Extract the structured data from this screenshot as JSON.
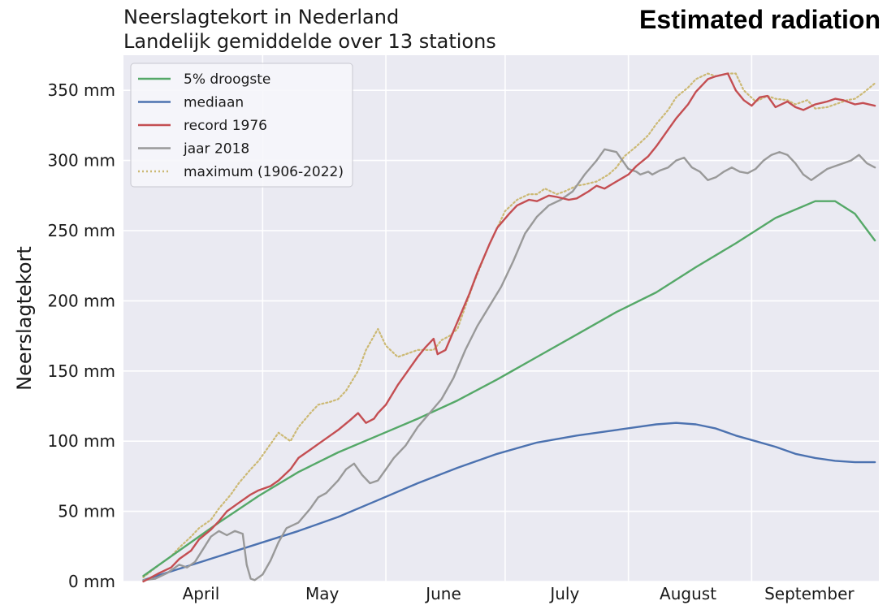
{
  "title_line1": "Neerslagtekort in Nederland",
  "title_line2": "Landelijk gemiddelde over 13 stations",
  "banner": "Estimated radiation",
  "chart_data": {
    "type": "line",
    "title": "Neerslagtekort in Nederland",
    "subtitle": "Landelijk gemiddelde over 13 stations",
    "xlabel": "",
    "ylabel": "Neerslagtekort",
    "x_unit": "day of year",
    "xlim": [
      86,
      276
    ],
    "ylim": [
      0,
      375
    ],
    "yticks": [
      0,
      50,
      100,
      150,
      200,
      250,
      300,
      350
    ],
    "ytick_labels": [
      "0 mm",
      "50 mm",
      "100 mm",
      "150 mm",
      "200 mm",
      "250 mm",
      "300 mm",
      "350 mm"
    ],
    "month_labels": [
      {
        "label": "April",
        "x": 105.5
      },
      {
        "label": "May",
        "x": 136
      },
      {
        "label": "June",
        "x": 166.5
      },
      {
        "label": "July",
        "x": 197
      },
      {
        "label": "August",
        "x": 228
      },
      {
        "label": "September",
        "x": 258.5
      }
    ],
    "month_boundaries": [
      121,
      152,
      182,
      213,
      244
    ],
    "grid": true,
    "legend_position": "top-left",
    "series": [
      {
        "name": "5% droogste",
        "color": "#55a868",
        "style": "solid",
        "x": [
          91,
          100,
          110,
          120,
          130,
          140,
          150,
          160,
          170,
          180,
          190,
          200,
          210,
          220,
          230,
          240,
          250,
          260,
          265,
          270,
          275
        ],
        "y": [
          4,
          22,
          42,
          61,
          78,
          92,
          104,
          116,
          129,
          144,
          160,
          176,
          192,
          206,
          224,
          241,
          259,
          271,
          271,
          262,
          243
        ]
      },
      {
        "name": "mediaan",
        "color": "#4c72b0",
        "style": "solid",
        "x": [
          91,
          100,
          110,
          120,
          130,
          140,
          150,
          160,
          170,
          180,
          190,
          200,
          210,
          215,
          220,
          225,
          230,
          235,
          240,
          245,
          250,
          255,
          260,
          265,
          270,
          275
        ],
        "y": [
          1,
          9,
          18,
          27,
          36,
          46,
          58,
          70,
          81,
          91,
          99,
          104,
          108,
          110,
          112,
          113,
          112,
          109,
          104,
          100,
          96,
          91,
          88,
          86,
          85,
          85
        ]
      },
      {
        "name": "record 1976",
        "color": "#c44e52",
        "style": "solid",
        "x": [
          91,
          93,
          95,
          98,
          100,
          103,
          105,
          108,
          110,
          112,
          115,
          118,
          120,
          123,
          125,
          128,
          130,
          133,
          135,
          138,
          140,
          143,
          145,
          147,
          149,
          150,
          152,
          155,
          157,
          160,
          162,
          164,
          165,
          167,
          170,
          173,
          175,
          178,
          180,
          183,
          185,
          188,
          190,
          193,
          195,
          198,
          200,
          203,
          205,
          207,
          210,
          213,
          215,
          218,
          220,
          223,
          225,
          228,
          230,
          233,
          235,
          238,
          240,
          242,
          244,
          246,
          248,
          250,
          253,
          255,
          257,
          260,
          263,
          265,
          267,
          270,
          272,
          275
        ],
        "y": [
          0,
          3,
          6,
          10,
          16,
          22,
          30,
          37,
          43,
          50,
          56,
          62,
          65,
          68,
          72,
          80,
          88,
          94,
          98,
          104,
          108,
          115,
          120,
          113,
          116,
          120,
          126,
          140,
          148,
          160,
          167,
          173,
          162,
          165,
          185,
          205,
          220,
          240,
          252,
          262,
          268,
          272,
          271,
          275,
          274,
          272,
          273,
          278,
          282,
          280,
          285,
          290,
          296,
          303,
          310,
          322,
          330,
          340,
          349,
          358,
          360,
          362,
          350,
          343,
          339,
          345,
          346,
          338,
          342,
          338,
          336,
          340,
          342,
          344,
          343,
          340,
          341,
          339
        ]
      },
      {
        "name": "jaar 2018",
        "color": "#999999",
        "style": "solid",
        "x": [
          91,
          94,
          97,
          100,
          102,
          104,
          106,
          108,
          110,
          112,
          114,
          116,
          117,
          118,
          119,
          121,
          123,
          125,
          127,
          130,
          133,
          135,
          137,
          140,
          142,
          144,
          146,
          148,
          150,
          152,
          154,
          157,
          160,
          163,
          166,
          169,
          172,
          175,
          178,
          181,
          184,
          187,
          190,
          193,
          196,
          199,
          202,
          205,
          207,
          210,
          213,
          215,
          216,
          218,
          219,
          221,
          223,
          225,
          227,
          229,
          231,
          233,
          235,
          237,
          239,
          241,
          243,
          245,
          247,
          249,
          251,
          253,
          255,
          257,
          259,
          261,
          263,
          265,
          267,
          269,
          271,
          273,
          275
        ],
        "y": [
          1,
          2,
          6,
          12,
          10,
          14,
          23,
          32,
          36,
          33,
          36,
          34,
          12,
          2,
          1,
          5,
          15,
          28,
          38,
          42,
          52,
          60,
          63,
          72,
          80,
          84,
          76,
          70,
          72,
          80,
          88,
          97,
          110,
          120,
          130,
          145,
          165,
          182,
          196,
          210,
          228,
          248,
          260,
          268,
          272,
          278,
          290,
          300,
          308,
          306,
          294,
          292,
          290,
          292,
          290,
          293,
          295,
          300,
          302,
          295,
          292,
          286,
          288,
          292,
          295,
          292,
          291,
          294,
          300,
          304,
          306,
          304,
          298,
          290,
          286,
          290,
          294,
          296,
          298,
          300,
          304,
          298,
          295
        ]
      },
      {
        "name": "maximum (1906-2022)",
        "color": "#ccb974",
        "style": "dotted",
        "x": [
          91,
          95,
          98,
          100,
          103,
          105,
          108,
          110,
          113,
          115,
          118,
          120,
          123,
          125,
          128,
          130,
          133,
          135,
          138,
          140,
          142,
          145,
          147,
          149,
          150,
          152,
          155,
          157,
          160,
          162,
          164,
          166,
          168,
          170,
          172,
          174,
          176,
          178,
          180,
          182,
          185,
          188,
          190,
          192,
          195,
          197,
          200,
          202,
          205,
          208,
          210,
          212,
          215,
          218,
          220,
          223,
          225,
          228,
          230,
          233,
          235,
          238,
          240,
          242,
          245,
          248,
          250,
          253,
          255,
          258,
          260,
          263,
          266,
          268,
          270,
          272,
          275
        ],
        "y": [
          3,
          12,
          18,
          24,
          32,
          38,
          44,
          52,
          62,
          70,
          80,
          86,
          98,
          106,
          100,
          110,
          120,
          126,
          128,
          130,
          136,
          150,
          165,
          175,
          180,
          168,
          160,
          162,
          165,
          165,
          165,
          172,
          175,
          180,
          196,
          212,
          226,
          240,
          252,
          264,
          272,
          276,
          276,
          280,
          276,
          278,
          282,
          283,
          285,
          290,
          295,
          303,
          310,
          318,
          326,
          336,
          345,
          352,
          358,
          362,
          360,
          362,
          362,
          350,
          342,
          346,
          344,
          343,
          340,
          343,
          337,
          338,
          341,
          343,
          344,
          348,
          355
        ]
      }
    ]
  }
}
